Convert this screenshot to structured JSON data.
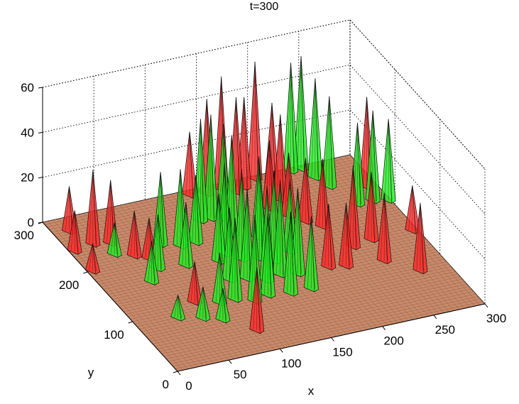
{
  "chart_data": {
    "type": "surface3d",
    "title": "t=300",
    "xlabel": "x",
    "ylabel": "y",
    "xlim": [
      0,
      300
    ],
    "ylim": [
      0,
      300
    ],
    "zlim": [
      0,
      60
    ],
    "x_ticks": [
      "0",
      "50",
      "100",
      "150",
      "200",
      "250",
      "300"
    ],
    "y_ticks": [
      "0",
      "100",
      "200",
      "300"
    ],
    "z_ticks": [
      "0",
      "20",
      "40",
      "60"
    ],
    "grid": true,
    "series": [
      {
        "color": "#ff2a2a",
        "peaks": [
          {
            "x": 5,
            "y": 240,
            "z": 18
          },
          {
            "x": 5,
            "y": 200,
            "z": 12
          },
          {
            "x": 15,
            "y": 275,
            "z": 20
          },
          {
            "x": 25,
            "y": 245,
            "z": 33
          },
          {
            "x": 40,
            "y": 240,
            "z": 28
          },
          {
            "x": 50,
            "y": 210,
            "z": 20
          },
          {
            "x": 60,
            "y": 200,
            "z": 18
          },
          {
            "x": 65,
            "y": 110,
            "z": 18
          },
          {
            "x": 95,
            "y": 40,
            "z": 28
          },
          {
            "x": 140,
            "y": 292,
            "z": 28
          },
          {
            "x": 155,
            "y": 288,
            "z": 42
          },
          {
            "x": 170,
            "y": 290,
            "z": 50
          },
          {
            "x": 180,
            "y": 280,
            "z": 42
          },
          {
            "x": 190,
            "y": 285,
            "z": 40
          },
          {
            "x": 205,
            "y": 295,
            "z": 52
          },
          {
            "x": 215,
            "y": 280,
            "z": 36
          },
          {
            "x": 210,
            "y": 250,
            "z": 38
          },
          {
            "x": 195,
            "y": 240,
            "z": 30
          },
          {
            "x": 205,
            "y": 220,
            "z": 28
          },
          {
            "x": 215,
            "y": 205,
            "z": 28
          },
          {
            "x": 225,
            "y": 190,
            "z": 30
          },
          {
            "x": 200,
            "y": 120,
            "z": 28
          },
          {
            "x": 215,
            "y": 115,
            "z": 28
          },
          {
            "x": 235,
            "y": 145,
            "z": 36
          },
          {
            "x": 255,
            "y": 150,
            "z": 30
          },
          {
            "x": 250,
            "y": 110,
            "z": 30
          },
          {
            "x": 272,
            "y": 80,
            "z": 30
          },
          {
            "x": 295,
            "y": 150,
            "z": 20
          },
          {
            "x": 290,
            "y": 240,
            "z": 40
          }
        ]
      },
      {
        "color": "#22ee22",
        "peaks": [
          {
            "x": 35,
            "y": 220,
            "z": 14
          },
          {
            "x": 45,
            "y": 160,
            "z": 18
          },
          {
            "x": 60,
            "y": 180,
            "z": 24
          },
          {
            "x": 80,
            "y": 220,
            "z": 32
          },
          {
            "x": 85,
            "y": 175,
            "z": 28
          },
          {
            "x": 95,
            "y": 210,
            "z": 34
          },
          {
            "x": 110,
            "y": 210,
            "z": 30
          },
          {
            "x": 115,
            "y": 170,
            "z": 30
          },
          {
            "x": 130,
            "y": 245,
            "z": 45
          },
          {
            "x": 140,
            "y": 245,
            "z": 46
          },
          {
            "x": 150,
            "y": 240,
            "z": 42
          },
          {
            "x": 145,
            "y": 210,
            "z": 44
          },
          {
            "x": 165,
            "y": 195,
            "z": 36
          },
          {
            "x": 125,
            "y": 180,
            "z": 40
          },
          {
            "x": 135,
            "y": 165,
            "z": 40
          },
          {
            "x": 150,
            "y": 160,
            "z": 42
          },
          {
            "x": 160,
            "y": 150,
            "z": 40
          },
          {
            "x": 180,
            "y": 160,
            "z": 32
          },
          {
            "x": 110,
            "y": 135,
            "z": 32
          },
          {
            "x": 125,
            "y": 130,
            "z": 40
          },
          {
            "x": 140,
            "y": 120,
            "z": 42
          },
          {
            "x": 155,
            "y": 125,
            "z": 42
          },
          {
            "x": 170,
            "y": 120,
            "z": 38
          },
          {
            "x": 85,
            "y": 100,
            "z": 22
          },
          {
            "x": 100,
            "y": 100,
            "z": 36
          },
          {
            "x": 115,
            "y": 90,
            "z": 38
          },
          {
            "x": 130,
            "y": 95,
            "z": 36
          },
          {
            "x": 150,
            "y": 90,
            "z": 36
          },
          {
            "x": 170,
            "y": 90,
            "z": 32
          },
          {
            "x": 75,
            "y": 70,
            "z": 14
          },
          {
            "x": 60,
            "y": 80,
            "z": 14
          },
          {
            "x": 40,
            "y": 90,
            "z": 10
          },
          {
            "x": 240,
            "y": 295,
            "z": 48
          },
          {
            "x": 250,
            "y": 295,
            "z": 50
          },
          {
            "x": 255,
            "y": 275,
            "z": 44
          },
          {
            "x": 260,
            "y": 255,
            "z": 40
          },
          {
            "x": 270,
            "y": 215,
            "z": 36
          },
          {
            "x": 285,
            "y": 215,
            "z": 40
          },
          {
            "x": 298,
            "y": 210,
            "z": 36
          }
        ]
      }
    ]
  }
}
